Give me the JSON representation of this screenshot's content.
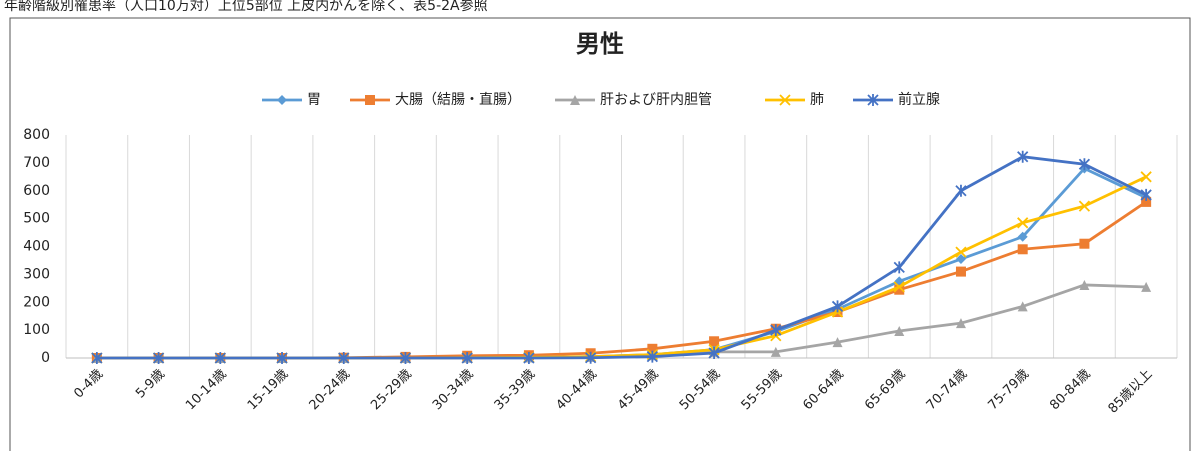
{
  "caption": "年齢階級別罹患率（人口10万対）上位5部位 上皮内がんを除く、表5-2A参照",
  "chart_data": {
    "type": "line",
    "title": "男性",
    "categories": [
      "0-4歳",
      "5-9歳",
      "10-14歳",
      "15-19歳",
      "20-24歳",
      "25-29歳",
      "30-34歳",
      "35-39歳",
      "40-44歳",
      "45-49歳",
      "50-54歳",
      "55-59歳",
      "60-64歳",
      "65-69歳",
      "70-74歳",
      "75-79歳",
      "80-84歳",
      "85歳以上"
    ],
    "series": [
      {
        "name": "胃",
        "color": "#5b9bd5",
        "marker": "diamond",
        "values": [
          0,
          0,
          0,
          0,
          0,
          0,
          1,
          2,
          5,
          12,
          30,
          95,
          175,
          275,
          355,
          435,
          680,
          575
        ]
      },
      {
        "name": "大腸（結腸・直腸）",
        "color": "#ed7d31",
        "marker": "square",
        "values": [
          0,
          0,
          0,
          0,
          1,
          4,
          8,
          10,
          17,
          33,
          60,
          105,
          165,
          245,
          310,
          390,
          410,
          560
        ]
      },
      {
        "name": "肝および肝内胆管",
        "color": "#a5a5a5",
        "marker": "triangle",
        "values": [
          0,
          0,
          0,
          0,
          0,
          0,
          1,
          2,
          4,
          10,
          22,
          22,
          57,
          97,
          125,
          185,
          262,
          255
        ]
      },
      {
        "name": "肺",
        "color": "#ffc000",
        "marker": "x",
        "values": [
          0,
          0,
          0,
          0,
          0,
          0,
          1,
          2,
          5,
          12,
          30,
          80,
          165,
          255,
          380,
          485,
          545,
          650
        ]
      },
      {
        "name": "前立腺",
        "color": "#4472c4",
        "marker": "star",
        "values": [
          0,
          0,
          0,
          0,
          0,
          0,
          0,
          0,
          1,
          5,
          18,
          100,
          185,
          325,
          600,
          722,
          695,
          585
        ]
      }
    ],
    "ylim": [
      0,
      800
    ],
    "yticks": [
      0,
      100,
      200,
      300,
      400,
      500,
      600,
      700,
      800
    ],
    "grid": true,
    "legend": "top"
  }
}
